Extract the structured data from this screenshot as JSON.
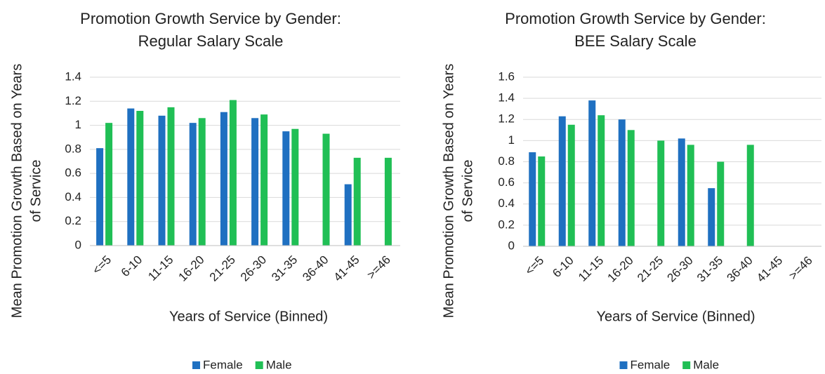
{
  "chart_data": [
    {
      "type": "bar",
      "title": [
        "Promotion Growth Service by Gender:",
        "Regular Salary Scale"
      ],
      "y_label": [
        "Mean Promotion Growth Based on Years",
        "of Service"
      ],
      "x_label": "Years of Service (Binned)",
      "categories": [
        "<=5",
        "6-10",
        "11-15",
        "16-20",
        "21-25",
        "26-30",
        "31-35",
        "36-40",
        "41-45",
        ">=46"
      ],
      "series": [
        {
          "name": "Female",
          "color": "#1f70c1",
          "values": [
            0.81,
            1.14,
            1.08,
            1.02,
            1.11,
            1.06,
            0.95,
            null,
            0.51,
            null
          ]
        },
        {
          "name": "Male",
          "color": "#20bf55",
          "values": [
            1.02,
            1.12,
            1.15,
            1.06,
            1.21,
            1.09,
            0.97,
            0.93,
            0.73,
            0.73
          ]
        }
      ],
      "ylim": [
        0,
        1.4
      ],
      "yticks": [
        0,
        0.2,
        0.4,
        0.6,
        0.8,
        1,
        1.2,
        1.4
      ],
      "grid": true,
      "legend": "bottom"
    },
    {
      "type": "bar",
      "title": [
        "Promotion Growth Service by Gender:",
        "BEE Salary Scale"
      ],
      "y_label": [
        "Mean Promotion Growth Based on Years",
        "of Service"
      ],
      "x_label": "Years of Service (Binned)",
      "categories": [
        "<=5",
        "6-10",
        "11-15",
        "16-20",
        "21-25",
        "26-30",
        "31-35",
        "36-40",
        "41-45",
        ">=46"
      ],
      "series": [
        {
          "name": "Female",
          "color": "#1f70c1",
          "values": [
            0.89,
            1.23,
            1.38,
            1.2,
            null,
            1.02,
            0.55,
            null,
            null,
            null
          ]
        },
        {
          "name": "Male",
          "color": "#20bf55",
          "values": [
            0.85,
            1.15,
            1.24,
            1.1,
            1.0,
            0.96,
            0.8,
            0.96,
            null,
            null
          ]
        }
      ],
      "ylim": [
        0,
        1.6
      ],
      "yticks": [
        0,
        0.2,
        0.4,
        0.6,
        0.8,
        1,
        1.2,
        1.4,
        1.6
      ],
      "grid": true,
      "legend": "bottom"
    }
  ]
}
